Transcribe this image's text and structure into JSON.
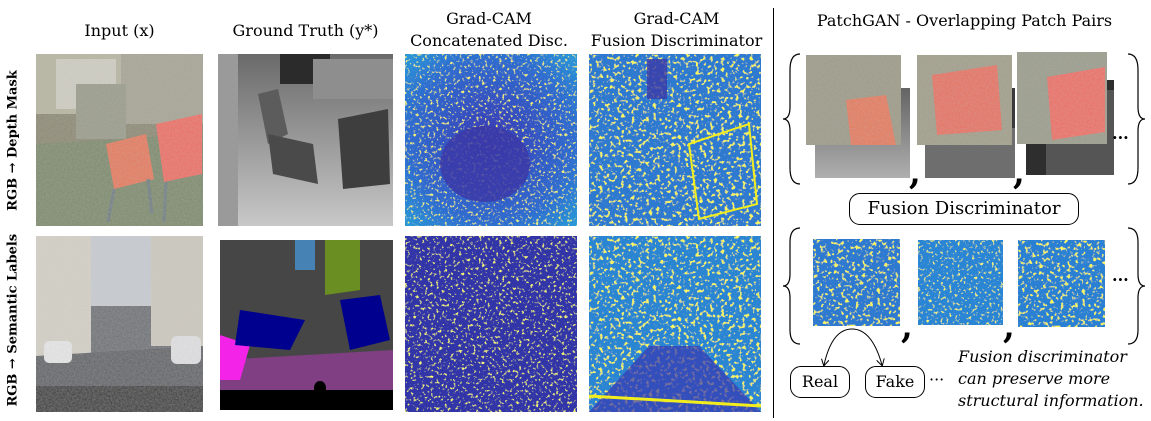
{
  "headers": {
    "input": "Input (x)",
    "ground_truth": "Ground Truth (y*)",
    "gradcam_concat_line1": "Grad-CAM",
    "gradcam_concat_line2": "Concatenated Disc.",
    "gradcam_fusion_line1": "Grad-CAM",
    "gradcam_fusion_line2": "Fusion Discriminator",
    "patchgan": "PatchGAN - Overlapping Patch Pairs"
  },
  "rows": {
    "depth_label": "RGB → Depth Mask",
    "semantic_label": "RGB → Semantic Labels"
  },
  "fusion_box": "Fusion Discriminator",
  "outputs": {
    "real": "Real",
    "fake": "Fake",
    "ellipsis": "···"
  },
  "punct": {
    "comma": ",",
    "ellipsis": "···"
  },
  "note": {
    "line1": "Fusion discriminator",
    "line2": "can preserve more",
    "line3": "structural information."
  },
  "colors": {
    "heat_bg": "#3a3ab4",
    "heat_mid": "#2aa8d8",
    "heat_hot": "#f0f020",
    "semantic_road": "#7f3f82",
    "semantic_car": "#00008e",
    "semantic_sidewalk": "#f423e8",
    "semantic_vegetation": "#6b8e23",
    "semantic_building": "#464646",
    "semantic_sky": "#4682b4"
  }
}
